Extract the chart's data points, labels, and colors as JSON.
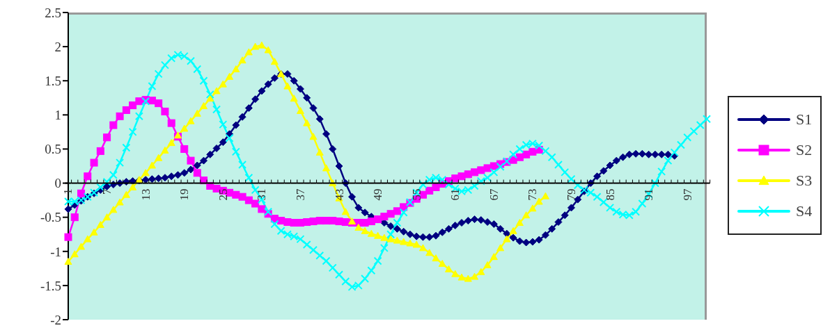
{
  "chart_data": {
    "type": "line",
    "categories": [
      "1",
      null,
      null,
      null,
      null,
      null,
      "7",
      null,
      null,
      null,
      null,
      null,
      "13",
      null,
      null,
      null,
      null,
      null,
      "19",
      null,
      null,
      null,
      null,
      null,
      "25",
      null,
      null,
      null,
      null,
      null,
      "31",
      null,
      null,
      null,
      null,
      null,
      "37",
      null,
      null,
      null,
      null,
      null,
      "43",
      null,
      null,
      null,
      null,
      null,
      "49",
      null,
      null,
      null,
      null,
      null,
      "55",
      null,
      null,
      null,
      null,
      null,
      "61",
      null,
      null,
      null,
      null,
      null,
      "67",
      null,
      null,
      null,
      null,
      null,
      "73",
      null,
      null,
      null,
      null,
      null,
      "79",
      null,
      null,
      null,
      null,
      null,
      "85",
      null,
      null,
      null,
      null,
      null,
      "91",
      null,
      null,
      null,
      null,
      null,
      "97",
      null,
      null,
      null
    ],
    "ylim": [
      -2,
      2.5
    ],
    "yticks": [
      -2,
      -1.5,
      -1,
      -0.5,
      0,
      0.5,
      1,
      1.5,
      2,
      2.5
    ],
    "legend": "right",
    "series": [
      {
        "name": "S1",
        "color": "#000080",
        "marker": "diamond",
        "values": [
          -0.38,
          -0.32,
          -0.26,
          -0.2,
          -0.15,
          -0.1,
          -0.05,
          -0.02,
          0,
          0.02,
          0.03,
          0.04,
          0.05,
          0.06,
          0.07,
          0.08,
          0.1,
          0.12,
          0.15,
          0.2,
          0.26,
          0.33,
          0.42,
          0.51,
          0.6,
          0.72,
          0.85,
          0.97,
          1.1,
          1.23,
          1.35,
          1.45,
          1.54,
          1.6,
          1.6,
          1.5,
          1.38,
          1.25,
          1.1,
          0.94,
          0.72,
          0.5,
          0.25,
          0,
          -0.2,
          -0.36,
          -0.43,
          -0.49,
          -0.53,
          -0.58,
          -0.63,
          -0.67,
          -0.71,
          -0.75,
          -0.78,
          -0.79,
          -0.79,
          -0.77,
          -0.72,
          -0.67,
          -0.62,
          -0.58,
          -0.55,
          -0.53,
          -0.54,
          -0.57,
          -0.6,
          -0.67,
          -0.74,
          -0.8,
          -0.85,
          -0.87,
          -0.86,
          -0.83,
          -0.76,
          -0.67,
          -0.57,
          -0.47,
          -0.36,
          -0.24,
          -0.12,
          0,
          0.1,
          0.18,
          0.26,
          0.33,
          0.38,
          0.42,
          0.43,
          0.43,
          0.42,
          0.42,
          0.42,
          0.42,
          0.4,
          null,
          null,
          null,
          null,
          null
        ]
      },
      {
        "name": "S2",
        "color": "#ff00ff",
        "marker": "square",
        "values": [
          -0.79,
          -0.5,
          -0.15,
          0.1,
          0.3,
          0.47,
          0.67,
          0.85,
          0.98,
          1.07,
          1.14,
          1.2,
          1.22,
          1.21,
          1.17,
          1.05,
          0.88,
          0.68,
          0.5,
          0.33,
          0.15,
          0.04,
          -0.04,
          -0.08,
          -0.11,
          -0.14,
          -0.17,
          -0.2,
          -0.25,
          -0.3,
          -0.38,
          -0.45,
          -0.52,
          -0.55,
          -0.57,
          -0.58,
          -0.58,
          -0.57,
          -0.56,
          -0.55,
          -0.55,
          -0.55,
          -0.56,
          -0.57,
          -0.58,
          -0.58,
          -0.58,
          -0.56,
          -0.53,
          -0.49,
          -0.45,
          -0.41,
          -0.35,
          -0.29,
          -0.23,
          -0.17,
          -0.11,
          -0.06,
          -0.01,
          0.03,
          0.07,
          0.1,
          0.13,
          0.16,
          0.19,
          0.22,
          0.25,
          0.28,
          0.31,
          0.34,
          0.38,
          0.42,
          0.46,
          0.49,
          null,
          null,
          null,
          null,
          null,
          null,
          null,
          null,
          null,
          null,
          null,
          null,
          null,
          null,
          null,
          null,
          null,
          null,
          null,
          null,
          null,
          null,
          null,
          null,
          null,
          null
        ]
      },
      {
        "name": "S3",
        "color": "#ffff00",
        "marker": "triangle",
        "values": [
          -1.15,
          -1.04,
          -0.93,
          -0.82,
          -0.72,
          -0.61,
          -0.5,
          -0.39,
          -0.28,
          -0.17,
          -0.06,
          0.05,
          0.15,
          0.26,
          0.37,
          0.48,
          0.59,
          0.7,
          0.8,
          0.91,
          1.02,
          1.13,
          1.24,
          1.35,
          1.45,
          1.56,
          1.67,
          1.8,
          1.92,
          2.0,
          2.02,
          1.95,
          1.78,
          1.6,
          1.42,
          1.24,
          1.06,
          0.88,
          0.68,
          0.45,
          0.22,
          0,
          -0.22,
          -0.42,
          -0.56,
          -0.65,
          -0.7,
          -0.74,
          -0.77,
          -0.8,
          -0.82,
          -0.84,
          -0.86,
          -0.88,
          -0.9,
          -0.95,
          -1.02,
          -1.1,
          -1.18,
          -1.26,
          -1.33,
          -1.38,
          -1.4,
          -1.37,
          -1.3,
          -1.2,
          -1.08,
          -0.95,
          -0.82,
          -0.7,
          -0.58,
          -0.47,
          -0.37,
          -0.27,
          -0.19,
          null,
          null,
          null,
          null,
          null,
          null,
          null,
          null,
          null,
          null,
          null,
          null,
          null,
          null,
          null,
          null,
          null,
          null,
          null,
          null,
          null,
          null,
          null,
          null,
          null
        ]
      },
      {
        "name": "S4",
        "color": "#00ffff",
        "marker": "cross",
        "values": [
          -0.27,
          -0.27,
          -0.25,
          -0.2,
          -0.14,
          -0.06,
          0.02,
          0.12,
          0.3,
          0.52,
          0.75,
          0.98,
          1.2,
          1.42,
          1.6,
          1.73,
          1.83,
          1.88,
          1.86,
          1.79,
          1.67,
          1.5,
          1.3,
          1.08,
          0.86,
          0.66,
          0.46,
          0.27,
          0.08,
          -0.1,
          -0.24,
          -0.42,
          -0.6,
          -0.7,
          -0.75,
          -0.78,
          -0.82,
          -0.9,
          -0.98,
          -1.06,
          -1.14,
          -1.24,
          -1.34,
          -1.44,
          -1.52,
          -1.5,
          -1.4,
          -1.28,
          -1.14,
          -0.95,
          -0.75,
          -0.58,
          -0.43,
          -0.28,
          -0.14,
          -0.02,
          0.05,
          0.08,
          0.05,
          -0.02,
          -0.08,
          -0.12,
          -0.1,
          -0.04,
          0.03,
          0.08,
          0.16,
          0.24,
          0.32,
          0.42,
          0.5,
          0.56,
          0.58,
          0.55,
          0.47,
          0.38,
          0.27,
          0.16,
          0.06,
          -0.03,
          -0.1,
          -0.14,
          -0.2,
          -0.28,
          -0.36,
          -0.42,
          -0.46,
          -0.47,
          -0.42,
          -0.3,
          -0.16,
          0,
          0.17,
          0.33,
          0.45,
          0.56,
          0.67,
          0.76,
          0.85,
          0.94
        ]
      }
    ]
  }
}
